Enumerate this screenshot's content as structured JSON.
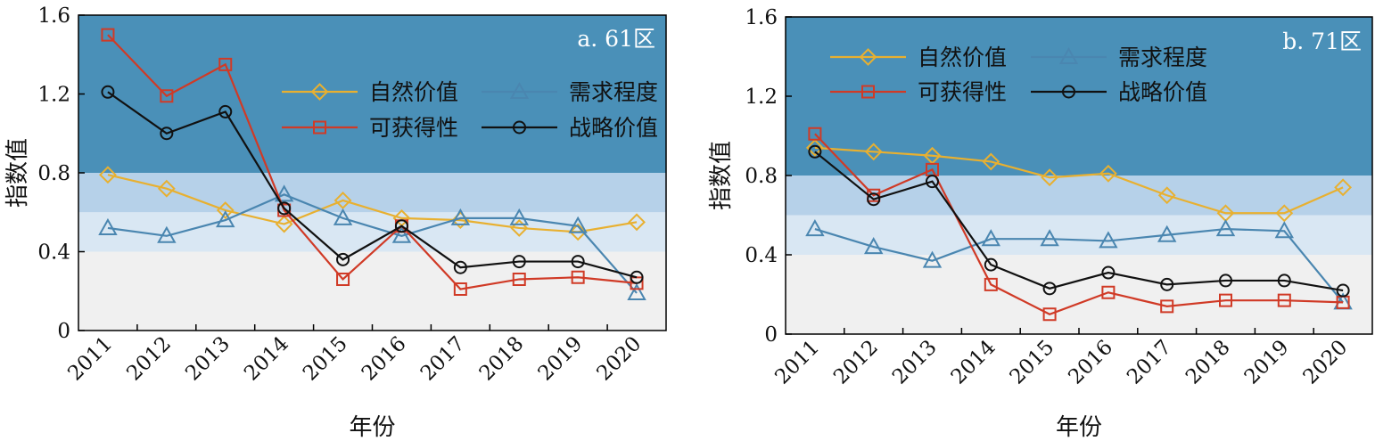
{
  "chart_data": [
    {
      "type": "line",
      "panel_label": "a. 61区",
      "xlabel": "年份",
      "ylabel": "指数值",
      "ylim": [
        0,
        1.6
      ],
      "yticks": [
        "0",
        "0.4",
        "0.8",
        "1.2",
        "1.6"
      ],
      "categories": [
        "2011",
        "2012",
        "2013",
        "2014",
        "2015",
        "2016",
        "2017",
        "2018",
        "2019",
        "2020"
      ],
      "background_bands": [
        {
          "from": 0,
          "to": 0.4,
          "color": "#f0f0f0"
        },
        {
          "from": 0.4,
          "to": 0.6,
          "color": "#d9e7f3"
        },
        {
          "from": 0.6,
          "to": 0.8,
          "color": "#b6d1e9"
        },
        {
          "from": 0.8,
          "to": 1.6,
          "color": "#4a90b8"
        }
      ],
      "legend_position": "top-right",
      "series": [
        {
          "name": "自然价值",
          "marker": "diamond",
          "color": "#e8b030",
          "values": [
            0.79,
            0.72,
            0.61,
            0.54,
            0.66,
            0.57,
            0.56,
            0.52,
            0.5,
            0.55
          ]
        },
        {
          "name": "需求程度",
          "marker": "triangle",
          "color": "#4a86b0",
          "values": [
            0.52,
            0.48,
            0.56,
            0.69,
            0.57,
            0.48,
            0.57,
            0.57,
            0.53,
            0.19
          ]
        },
        {
          "name": "可获得性",
          "marker": "square",
          "color": "#d03a26",
          "values": [
            1.5,
            1.19,
            1.35,
            0.61,
            0.26,
            0.53,
            0.21,
            0.26,
            0.27,
            0.24
          ]
        },
        {
          "name": "战略价值",
          "marker": "circle",
          "color": "#111111",
          "values": [
            1.21,
            1.0,
            1.11,
            0.62,
            0.36,
            0.53,
            0.32,
            0.35,
            0.35,
            0.27
          ]
        }
      ]
    },
    {
      "type": "line",
      "panel_label": "b. 71区",
      "xlabel": "年份",
      "ylabel": "指数值",
      "ylim": [
        0,
        1.6
      ],
      "yticks": [
        "0",
        "0.4",
        "0.8",
        "1.2",
        "1.6"
      ],
      "categories": [
        "2011",
        "2012",
        "2013",
        "2014",
        "2015",
        "2016",
        "2017",
        "2018",
        "2019",
        "2020"
      ],
      "background_bands": [
        {
          "from": 0,
          "to": 0.4,
          "color": "#f0f0f0"
        },
        {
          "from": 0.4,
          "to": 0.6,
          "color": "#d9e7f3"
        },
        {
          "from": 0.6,
          "to": 0.8,
          "color": "#b6d1e9"
        },
        {
          "from": 0.8,
          "to": 1.6,
          "color": "#4a90b8"
        }
      ],
      "legend_position": "top-left",
      "series": [
        {
          "name": "自然价值",
          "marker": "diamond",
          "color": "#e8b030",
          "values": [
            0.94,
            0.92,
            0.9,
            0.87,
            0.79,
            0.81,
            0.7,
            0.61,
            0.61,
            0.74
          ]
        },
        {
          "name": "需求程度",
          "marker": "triangle",
          "color": "#4a86b0",
          "values": [
            0.53,
            0.44,
            0.37,
            0.48,
            0.48,
            0.47,
            0.5,
            0.53,
            0.52,
            0.16
          ]
        },
        {
          "name": "可获得性",
          "marker": "square",
          "color": "#d03a26",
          "values": [
            1.01,
            0.7,
            0.83,
            0.25,
            0.1,
            0.21,
            0.14,
            0.17,
            0.17,
            0.16
          ]
        },
        {
          "name": "战略价值",
          "marker": "circle",
          "color": "#111111",
          "values": [
            0.92,
            0.68,
            0.77,
            0.35,
            0.23,
            0.31,
            0.25,
            0.27,
            0.27,
            0.22
          ]
        }
      ]
    }
  ]
}
